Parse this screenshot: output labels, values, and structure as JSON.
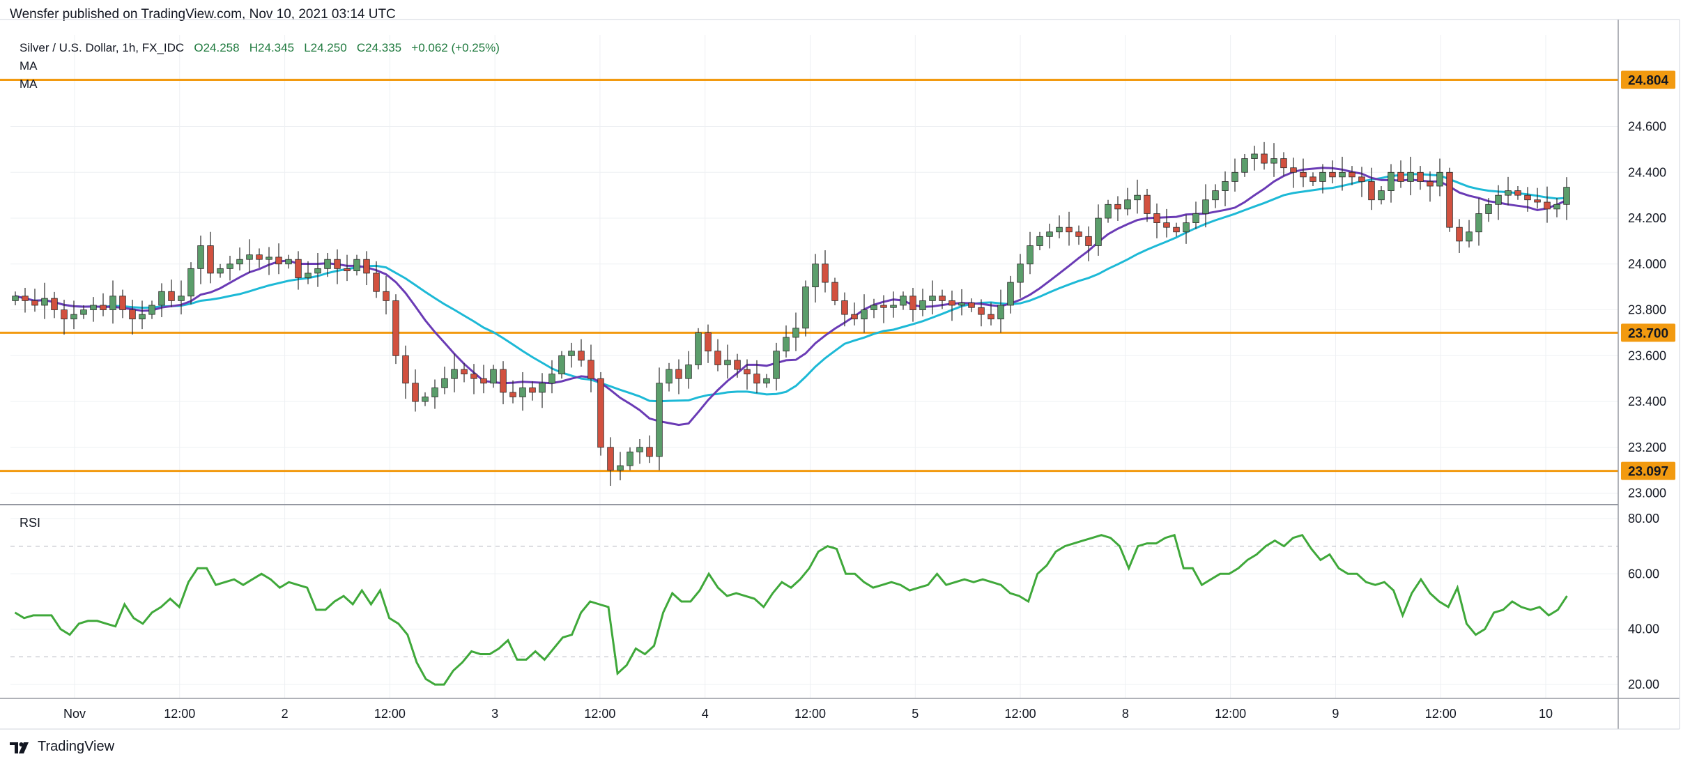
{
  "header": {
    "publisher_line": "Wensfer published on TradingView.com, Nov 10, 2021 03:14 UTC"
  },
  "legend": {
    "symbol": "Silver / U.S. Dollar, 1h, FX_IDC",
    "open": "O24.258",
    "high": "H24.345",
    "low": "L24.250",
    "close": "C24.335",
    "change": "+0.062 (+0.25%)",
    "ma1_label": "MA",
    "ma2_label": "MA"
  },
  "rsi_label": "RSI",
  "footer": {
    "brand": "TradingView"
  },
  "colors": {
    "up": "#5b9e6b",
    "down": "#d2513f",
    "ma_fast": "#6a3bb5",
    "ma_slow": "#1db9d6",
    "level": "#f29a10",
    "rsi": "#3fa83a",
    "grid": "#eef0f3"
  },
  "chart_data": {
    "type": "candlestick",
    "title": "Silver / U.S. Dollar, 1h, FX_IDC",
    "price_axis_ticks": [
      "23.000",
      "23.200",
      "23.400",
      "23.600",
      "23.800",
      "24.000",
      "24.200",
      "24.400",
      "24.600"
    ],
    "price_range": [
      22.95,
      25.0
    ],
    "horizontal_levels": [
      {
        "value": 24.804,
        "label": "24.804"
      },
      {
        "value": 23.7,
        "label": "23.700"
      },
      {
        "value": 23.097,
        "label": "23.097"
      }
    ],
    "x_tick_labels": [
      "Nov",
      "12:00",
      "2",
      "12:00",
      "3",
      "12:00",
      "4",
      "12:00",
      "5",
      "12:00",
      "8",
      "12:00",
      "9",
      "12:00",
      "10"
    ],
    "close_path": [
      23.86,
      23.84,
      23.82,
      23.85,
      23.8,
      23.76,
      23.78,
      23.8,
      23.82,
      23.8,
      23.86,
      23.8,
      23.76,
      23.78,
      23.82,
      23.88,
      23.84,
      23.86,
      23.98,
      24.08,
      23.96,
      23.98,
      24.0,
      24.02,
      24.04,
      24.02,
      24.03,
      24.0,
      24.02,
      23.94,
      23.96,
      23.98,
      24.02,
      23.98,
      23.97,
      24.02,
      23.96,
      23.88,
      23.84,
      23.6,
      23.48,
      23.4,
      23.42,
      23.46,
      23.5,
      23.54,
      23.52,
      23.5,
      23.48,
      23.54,
      23.44,
      23.42,
      23.46,
      23.44,
      23.48,
      23.52,
      23.6,
      23.62,
      23.58,
      23.5,
      23.2,
      23.1,
      23.12,
      23.18,
      23.2,
      23.16,
      23.48,
      23.54,
      23.5,
      23.56,
      23.7,
      23.62,
      23.56,
      23.58,
      23.54,
      23.52,
      23.48,
      23.5,
      23.62,
      23.68,
      23.72,
      23.9,
      24.0,
      23.92,
      23.84,
      23.78,
      23.76,
      23.8,
      23.82,
      23.81,
      23.82,
      23.86,
      23.8,
      23.84,
      23.86,
      23.84,
      23.82,
      23.83,
      23.81,
      23.78,
      23.76,
      23.82,
      23.92,
      24.0,
      24.08,
      24.12,
      24.14,
      24.16,
      24.14,
      24.12,
      24.08,
      24.2,
      24.26,
      24.24,
      24.28,
      24.3,
      24.22,
      24.18,
      24.16,
      24.14,
      24.18,
      24.22,
      24.28,
      24.32,
      24.36,
      24.4,
      24.46,
      24.48,
      24.44,
      24.46,
      24.42,
      24.4,
      24.38,
      24.36,
      24.4,
      24.38,
      24.4,
      24.38,
      24.36,
      24.28,
      24.32,
      24.4,
      24.36,
      24.4,
      24.36,
      24.34,
      24.4,
      24.16,
      24.1,
      24.14,
      24.22,
      24.26,
      24.3,
      24.32,
      24.3,
      24.28,
      24.27,
      24.24,
      24.26,
      24.335
    ],
    "rsi": {
      "label": "RSI",
      "axis_ticks": [
        "20.00",
        "40.00",
        "60.00",
        "80.00"
      ],
      "bands": [
        30,
        70
      ],
      "range": [
        15,
        85
      ],
      "values": [
        46,
        44,
        45,
        45,
        45,
        40,
        38,
        42,
        43,
        43,
        42,
        41,
        49,
        44,
        42,
        46,
        48,
        51,
        48,
        57,
        62,
        62,
        56,
        57,
        58,
        56,
        58,
        60,
        58,
        55,
        57,
        56,
        55,
        47,
        47,
        50,
        52,
        49,
        54,
        49,
        54,
        44,
        42,
        38,
        28,
        22,
        20,
        20,
        25,
        28,
        32,
        31,
        31,
        33,
        36,
        29,
        29,
        32,
        29,
        33,
        37,
        38,
        46,
        50,
        49,
        48,
        24,
        27,
        33,
        31,
        34,
        46,
        53,
        50,
        50,
        54,
        60,
        55,
        52,
        53,
        52,
        51,
        48,
        53,
        57,
        55,
        58,
        62,
        68,
        70,
        69,
        60,
        60,
        57,
        55,
        56,
        57,
        56,
        54,
        55,
        56,
        60,
        56,
        57,
        58,
        57,
        58,
        57,
        56,
        53,
        52,
        50,
        60,
        63,
        68,
        70,
        71,
        72,
        73,
        74,
        73,
        70,
        62,
        70,
        71,
        71,
        73,
        74,
        62,
        62,
        56,
        58,
        60,
        60,
        62,
        65,
        67,
        70,
        72,
        70,
        73,
        74,
        69,
        65,
        67,
        62,
        60,
        60,
        57,
        56,
        57,
        54,
        45,
        53,
        58,
        53,
        50,
        48,
        55,
        42,
        38,
        40,
        46,
        47,
        50,
        48,
        47,
        48,
        45,
        47,
        52
      ]
    }
  }
}
